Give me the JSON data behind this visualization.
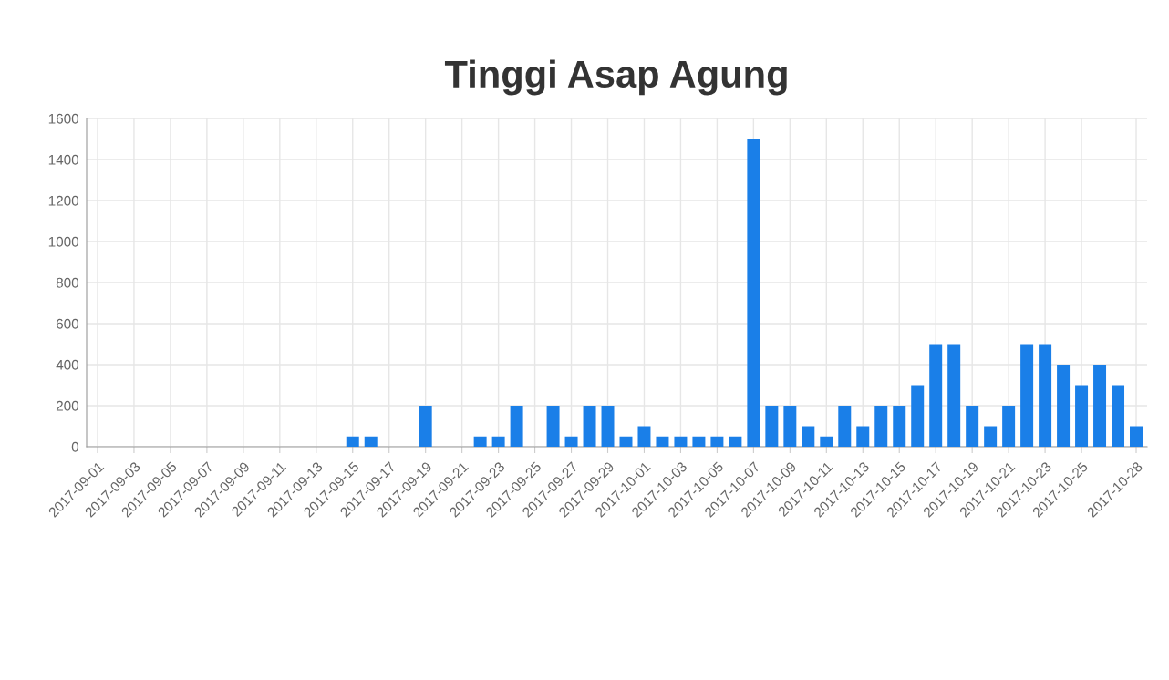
{
  "chart_data": {
    "type": "bar",
    "title": "Tinggi Asap Agung",
    "categories": [
      "2017-09-01",
      null,
      "2017-09-03",
      null,
      "2017-09-05",
      null,
      "2017-09-07",
      null,
      "2017-09-09",
      null,
      "2017-09-11",
      null,
      "2017-09-13",
      null,
      "2017-09-15",
      null,
      "2017-09-17",
      null,
      "2017-09-19",
      null,
      "2017-09-21",
      null,
      "2017-09-23",
      null,
      "2017-09-25",
      null,
      "2017-09-27",
      null,
      "2017-09-29",
      null,
      "2017-10-01",
      null,
      "2017-10-03",
      null,
      "2017-10-05",
      null,
      "2017-10-07",
      null,
      "2017-10-09",
      null,
      "2017-10-11",
      null,
      "2017-10-13",
      null,
      "2017-10-15",
      null,
      "2017-10-17",
      null,
      "2017-10-19",
      null,
      "2017-10-21",
      null,
      "2017-10-23",
      null,
      "2017-10-25",
      null,
      null,
      "2017-10-28"
    ],
    "values": [
      0,
      0,
      0,
      0,
      0,
      0,
      0,
      0,
      0,
      0,
      0,
      0,
      0,
      0,
      50,
      50,
      0,
      0,
      200,
      0,
      0,
      50,
      50,
      200,
      0,
      200,
      50,
      200,
      200,
      50,
      100,
      50,
      50,
      50,
      50,
      50,
      1500,
      200,
      200,
      100,
      50,
      200,
      100,
      200,
      200,
      300,
      500,
      500,
      200,
      100,
      200,
      500,
      500,
      400,
      300,
      400,
      300,
      100
    ],
    "color": "#1a7fe8",
    "ylim": [
      0,
      1600
    ],
    "yticks": [
      0,
      200,
      400,
      600,
      800,
      1000,
      1200,
      1400,
      1600
    ],
    "grid": true
  }
}
